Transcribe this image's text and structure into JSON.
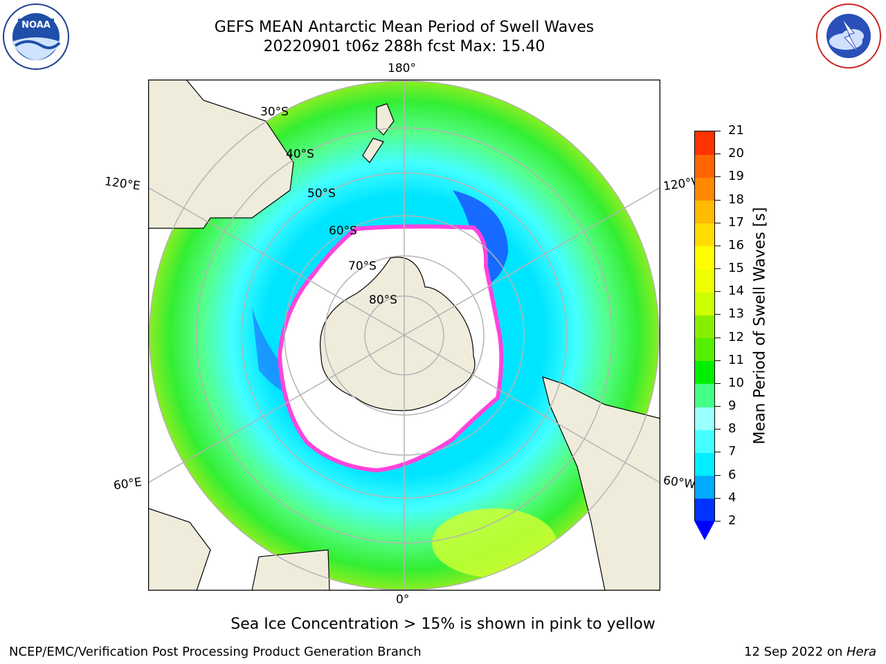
{
  "title": {
    "line1": "GEFS MEAN Antarctic Mean Period of Swell Waves",
    "line2": "20220901 t06z 288h fcst   Max: 15.40"
  },
  "logos": {
    "left": "noaa-logo",
    "right": "national-weather-service-logo"
  },
  "map": {
    "projection": "south polar stereographic",
    "longitude_labels": {
      "top": "180°",
      "bottom": "0°",
      "upper_left": "120°E",
      "upper_right": "120°W",
      "lower_left": "60°E",
      "lower_right": "60°W"
    },
    "latitude_labels": [
      "30°S",
      "40°S",
      "50°S",
      "60°S",
      "70°S",
      "80°S"
    ],
    "colors": {
      "land": "#efecdc",
      "sea_ice_edge": "#ff44dd",
      "ocean_low": "#00ffff",
      "ocean_mid": "#55ff88",
      "ocean_high": "#ccff22"
    }
  },
  "colorbar": {
    "title": "Mean Period of Swell Waves [s]",
    "ticks": [
      "2",
      "4",
      "6",
      "7",
      "8",
      "9",
      "10",
      "11",
      "12",
      "13",
      "14",
      "15",
      "16",
      "17",
      "18",
      "19",
      "20",
      "21"
    ],
    "colors": [
      "#0033ff",
      "#00aaff",
      "#00eeff",
      "#44ffff",
      "#99ffff",
      "#44ff88",
      "#00ee00",
      "#55ee00",
      "#88ee00",
      "#ccff00",
      "#eeff00",
      "#ffff00",
      "#ffdd00",
      "#ffbb00",
      "#ff8800",
      "#ff6600",
      "#ff3300",
      "#ff0000"
    ],
    "under_color": "#0000ff"
  },
  "caption": "Sea Ice Concentration > 15% is shown in pink to yellow",
  "footer": {
    "left": "NCEP/EMC/Verification Post Processing Product Generation Branch",
    "date": "12 Sep 2022 on ",
    "machine": "Hera"
  }
}
